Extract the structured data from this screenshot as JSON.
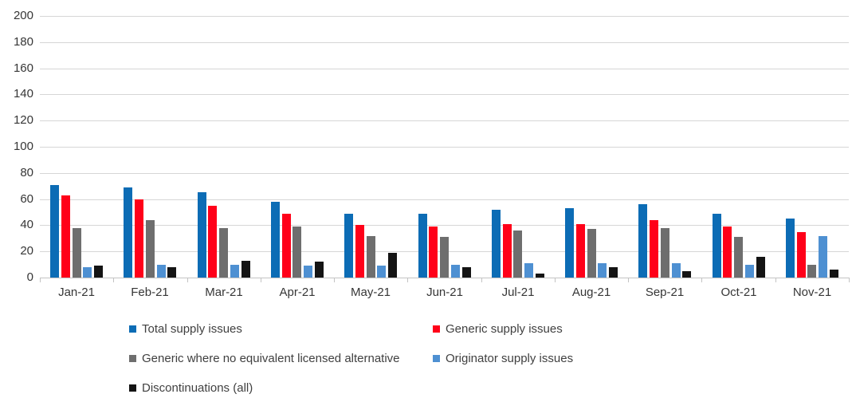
{
  "chart_data": {
    "type": "bar",
    "title": "",
    "xlabel": "",
    "ylabel": "",
    "ylim": [
      0,
      200
    ],
    "ytick_step": 20,
    "grid": true,
    "legend_position": "bottom",
    "categories": [
      "Jan-21",
      "Feb-21",
      "Mar-21",
      "Apr-21",
      "May-21",
      "Jun-21",
      "Jul-21",
      "Aug-21",
      "Sep-21",
      "Oct-21",
      "Nov-21"
    ],
    "series": [
      {
        "name": "Total supply issues",
        "color": "#0c6cb5",
        "values": [
          71,
          69,
          65,
          58,
          49,
          49,
          52,
          53,
          56,
          49,
          45
        ]
      },
      {
        "name": "Generic supply issues",
        "color": "#ff0019",
        "values": [
          63,
          60,
          55,
          49,
          40,
          39,
          41,
          41,
          44,
          39,
          35
        ]
      },
      {
        "name": "Generic where no equivalent licensed alternative",
        "color": "#6e6e6e",
        "values": [
          38,
          44,
          38,
          39,
          32,
          31,
          36,
          37,
          38,
          31,
          10
        ]
      },
      {
        "name": "Originator supply issues",
        "color": "#4e90d2",
        "values": [
          8,
          10,
          10,
          9,
          9,
          10,
          11,
          11,
          11,
          10,
          32
        ]
      },
      {
        "name": "Discontinuations (all)",
        "color": "#141414",
        "values": [
          9,
          8,
          13,
          12,
          19,
          8,
          3,
          8,
          5,
          16,
          6
        ]
      }
    ],
    "colors": {
      "gridline": "#d6d6d6",
      "axis": "#c3c3c3",
      "axis_label": "#363636",
      "legend_text": "#404040"
    }
  }
}
